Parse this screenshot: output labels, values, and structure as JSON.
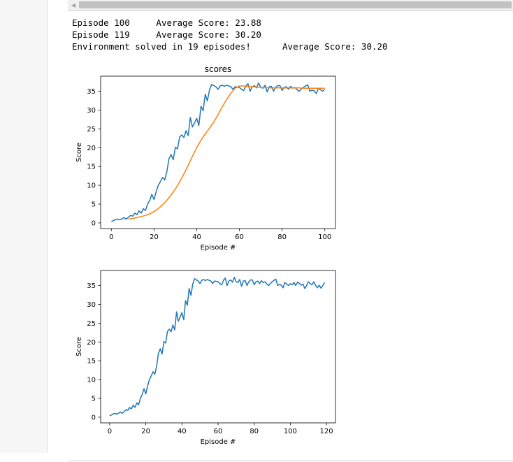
{
  "output": {
    "lines": [
      "Episode 100\tAverage Score: 23.88",
      "Episode 119\tAverage Score: 30.20",
      "Environment solved in 19 episodes!\tAverage Score: 30.20"
    ]
  },
  "chart_data": [
    {
      "type": "line",
      "title": "scores",
      "xlabel": "Episode #",
      "ylabel": "Score",
      "xlim": [
        -5,
        105
      ],
      "ylim": [
        -1.5,
        39
      ],
      "xticks": [
        0,
        20,
        40,
        60,
        80,
        100
      ],
      "yticks": [
        0,
        5,
        10,
        15,
        20,
        25,
        30,
        35
      ],
      "grid": false,
      "series": [
        {
          "color": "#1f77b4",
          "x": [
            0,
            1,
            2,
            3,
            4,
            5,
            6,
            7,
            8,
            9,
            10,
            11,
            12,
            13,
            14,
            15,
            16,
            17,
            18,
            19,
            20,
            21,
            22,
            23,
            24,
            25,
            26,
            27,
            28,
            29,
            30,
            31,
            32,
            33,
            34,
            35,
            36,
            37,
            38,
            39,
            40,
            41,
            42,
            43,
            44,
            45,
            46,
            47,
            48,
            49,
            50,
            51,
            52,
            53,
            54,
            55,
            56,
            57,
            58,
            59,
            60,
            61,
            62,
            63,
            64,
            65,
            66,
            67,
            68,
            69,
            70,
            71,
            72,
            73,
            74,
            75,
            76,
            77,
            78,
            79,
            80,
            81,
            82,
            83,
            84,
            85,
            86,
            87,
            88,
            89,
            90,
            91,
            92,
            93,
            94,
            95,
            96,
            97,
            98,
            99,
            100
          ],
          "values": [
            0.4,
            0.6,
            0.9,
            1.0,
            0.8,
            1.1,
            1.4,
            1.0,
            1.5,
            2.0,
            1.8,
            2.6,
            2.2,
            3.2,
            2.6,
            3.8,
            3.3,
            5.0,
            6.0,
            7.6,
            6.2,
            8.3,
            10.0,
            11.0,
            12.1,
            11.4,
            13.6,
            17.0,
            18.2,
            16.8,
            20.1,
            19.7,
            22.8,
            23.4,
            22.7,
            24.5,
            23.2,
            28.0,
            25.5,
            26.6,
            27.8,
            25.9,
            31.0,
            29.8,
            34.2,
            32.4,
            35.4,
            36.8,
            36.5,
            36.2,
            35.5,
            36.4,
            36.6,
            36.3,
            36.6,
            36.4,
            36.2,
            35.5,
            36.2,
            36.1,
            36.0,
            35.5,
            35.2,
            36.4,
            37.0,
            35.0,
            36.2,
            36.5,
            35.9,
            37.2,
            36.0,
            35.8,
            36.6,
            34.8,
            36.2,
            36.3,
            35.0,
            36.0,
            36.5,
            36.5,
            35.2,
            36.0,
            36.2,
            35.5,
            36.3,
            35.8,
            36.0,
            35.4,
            35.0,
            35.6,
            36.0,
            36.4,
            36.7,
            35.0,
            35.3,
            35.1,
            34.4,
            35.8,
            35.4,
            35.0,
            35.5
          ]
        },
        {
          "color": "#ff7f0e",
          "x": [
            8,
            10,
            12,
            14,
            16,
            18,
            20,
            22,
            24,
            26,
            28,
            30,
            32,
            34,
            36,
            38,
            40,
            42,
            44,
            46,
            48,
            50,
            52,
            54,
            56,
            58,
            60,
            62,
            64,
            66,
            68,
            70,
            72,
            74,
            76,
            78,
            80,
            82,
            84,
            86,
            88,
            90,
            92,
            94,
            96,
            98,
            100
          ],
          "values": [
            1.0,
            1.2,
            1.4,
            1.7,
            2.0,
            2.4,
            3.0,
            3.8,
            4.8,
            6.0,
            7.4,
            9.0,
            10.9,
            13.0,
            15.3,
            17.7,
            20.0,
            22.0,
            23.7,
            25.2,
            26.8,
            28.8,
            30.9,
            32.8,
            34.5,
            35.8,
            36.4,
            36.4,
            36.3,
            36.2,
            36.1,
            36.0,
            36.0,
            35.9,
            35.9,
            35.9,
            35.9,
            35.9,
            35.9,
            35.9,
            35.9,
            35.8,
            35.8,
            35.8,
            35.8,
            35.8,
            35.8
          ]
        }
      ]
    },
    {
      "type": "line",
      "title": "",
      "xlabel": "Episode #",
      "ylabel": "Score",
      "xlim": [
        -5,
        125
      ],
      "ylim": [
        -1.5,
        39
      ],
      "xticks": [
        0,
        20,
        40,
        60,
        80,
        100,
        120
      ],
      "yticks": [
        0,
        5,
        10,
        15,
        20,
        25,
        30,
        35
      ],
      "grid": false,
      "series": [
        {
          "color": "#1f77b4",
          "x": [
            0,
            1,
            2,
            3,
            4,
            5,
            6,
            7,
            8,
            9,
            10,
            11,
            12,
            13,
            14,
            15,
            16,
            17,
            18,
            19,
            20,
            21,
            22,
            23,
            24,
            25,
            26,
            27,
            28,
            29,
            30,
            31,
            32,
            33,
            34,
            35,
            36,
            37,
            38,
            39,
            40,
            41,
            42,
            43,
            44,
            45,
            46,
            47,
            48,
            49,
            50,
            51,
            52,
            53,
            54,
            55,
            56,
            57,
            58,
            59,
            60,
            61,
            62,
            63,
            64,
            65,
            66,
            67,
            68,
            69,
            70,
            71,
            72,
            73,
            74,
            75,
            76,
            77,
            78,
            79,
            80,
            81,
            82,
            83,
            84,
            85,
            86,
            87,
            88,
            89,
            90,
            91,
            92,
            93,
            94,
            95,
            96,
            97,
            98,
            99,
            100,
            101,
            102,
            103,
            104,
            105,
            106,
            107,
            108,
            109,
            110,
            111,
            112,
            113,
            114,
            115,
            116,
            117,
            118,
            119
          ],
          "values": [
            0.4,
            0.6,
            0.9,
            1.0,
            0.8,
            1.1,
            1.4,
            1.0,
            1.5,
            2.0,
            1.8,
            2.6,
            2.2,
            3.2,
            2.6,
            3.8,
            3.3,
            5.0,
            6.0,
            7.6,
            6.2,
            8.3,
            10.0,
            11.0,
            12.1,
            11.4,
            13.6,
            17.0,
            18.2,
            16.8,
            20.1,
            19.7,
            22.8,
            23.4,
            22.7,
            24.5,
            23.2,
            28.0,
            25.5,
            26.6,
            27.8,
            25.9,
            31.0,
            29.8,
            34.2,
            32.4,
            35.4,
            36.8,
            36.5,
            36.2,
            35.5,
            36.4,
            36.6,
            36.3,
            36.6,
            36.4,
            36.2,
            35.5,
            36.2,
            36.1,
            36.0,
            35.5,
            35.2,
            36.4,
            37.0,
            35.0,
            36.2,
            36.5,
            35.9,
            37.2,
            36.0,
            35.8,
            36.6,
            34.8,
            36.2,
            36.3,
            35.0,
            36.0,
            36.5,
            36.5,
            35.2,
            36.0,
            36.2,
            35.5,
            36.3,
            35.8,
            36.0,
            35.4,
            35.0,
            35.6,
            36.0,
            36.4,
            36.7,
            35.0,
            35.3,
            35.1,
            34.4,
            35.8,
            35.4,
            35.0,
            35.5,
            35.2,
            35.8,
            35.0,
            35.9,
            35.6,
            35.1,
            35.4,
            34.2,
            35.0,
            36.0,
            35.5,
            35.2,
            36.0,
            35.0,
            34.4,
            35.1,
            34.3,
            35.0,
            35.8
          ]
        }
      ]
    }
  ]
}
